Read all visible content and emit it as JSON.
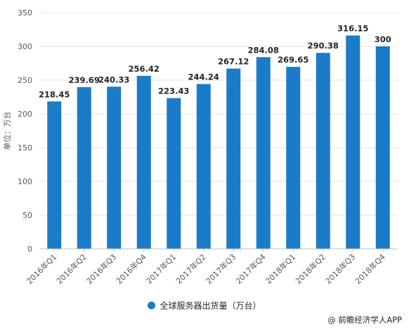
{
  "chart_data": {
    "type": "bar",
    "categories": [
      "2016年Q1",
      "2016年Q2",
      "2016年Q3",
      "2016年Q4",
      "2017年Q1",
      "2017年Q2",
      "2017年Q3",
      "2017年Q4",
      "2018年Q1",
      "2018年Q2",
      "2018年Q3",
      "2018年Q4"
    ],
    "series": [
      {
        "name": "全球服务器出货量（万台）",
        "values": [
          218.45,
          239.69,
          240.33,
          256.42,
          223.43,
          244.24,
          267.12,
          284.08,
          269.65,
          290.38,
          316.15,
          300
        ],
        "labels": [
          "218.45",
          "239.69",
          "240.33",
          "256.42",
          "223.43",
          "244.24",
          "267.12",
          "284.08",
          "269.65",
          "290.38",
          "316.15",
          "300"
        ]
      }
    ],
    "ylabel": "单位：万台",
    "xlabel": "",
    "ylim": [
      0,
      350
    ],
    "yticks": [
      0,
      50,
      100,
      150,
      200,
      250,
      300,
      350
    ],
    "grid": true,
    "legend_position": "bottom",
    "bar_color": "#1a7bc8"
  },
  "footer": {
    "text": "@ 前瞻经济学人APP"
  }
}
